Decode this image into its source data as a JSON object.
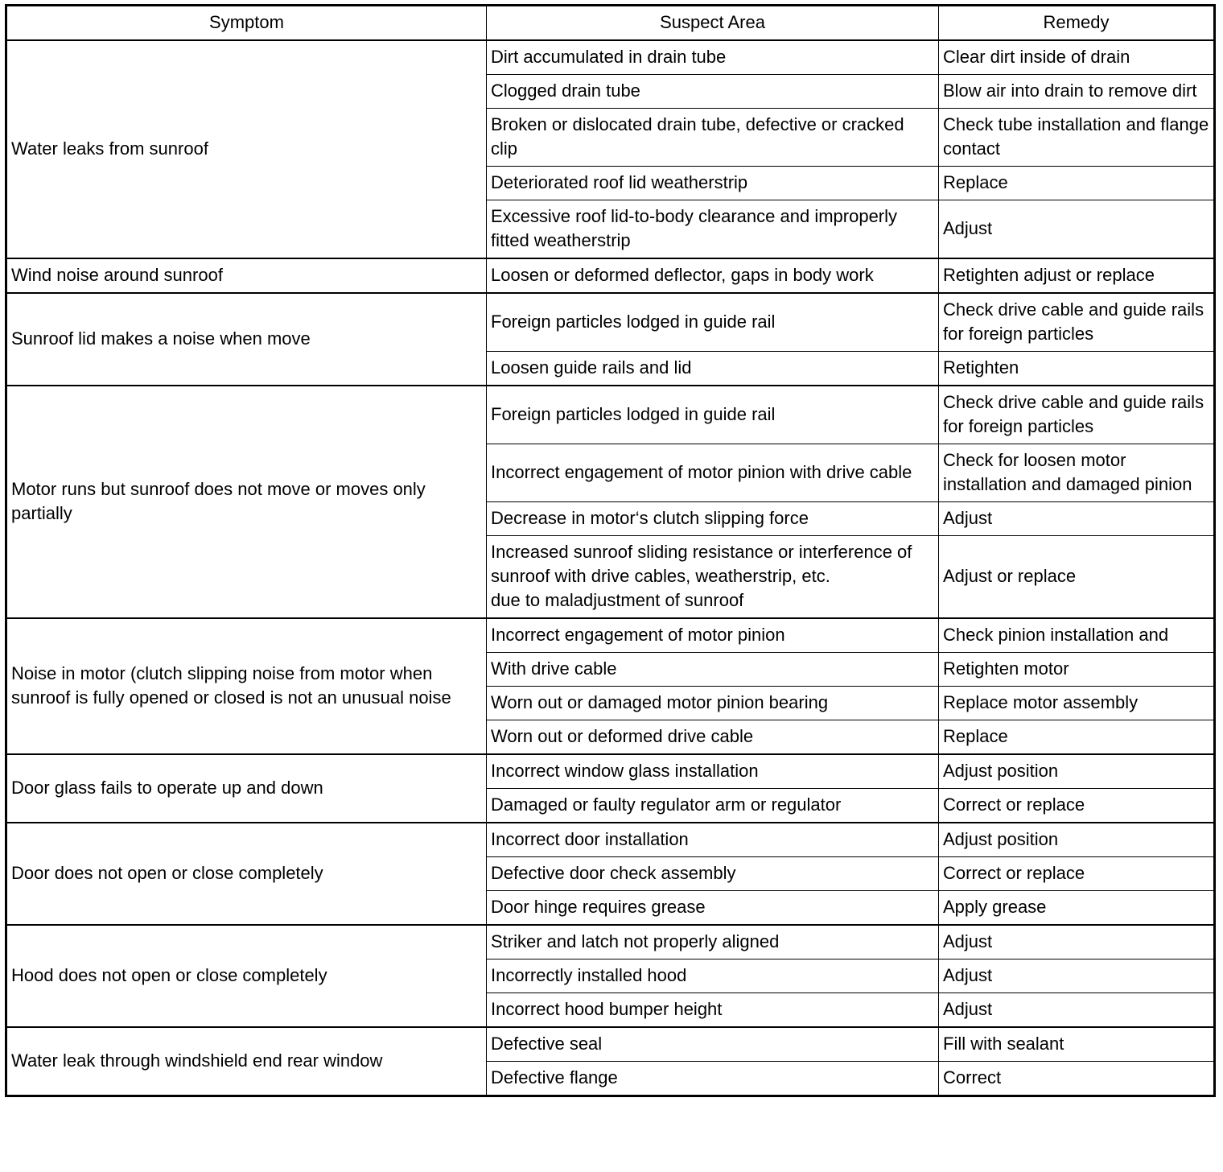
{
  "headers": {
    "symptom": "Symptom",
    "suspect": "Suspect Area",
    "remedy": "Remedy"
  },
  "groups": [
    {
      "symptom": "Water leaks from sunroof",
      "rows": [
        {
          "suspect": "Dirt accumulated in drain tube",
          "remedy": "Clear dirt inside of drain"
        },
        {
          "suspect": "Clogged drain tube",
          "remedy": "Blow air into drain to remove dirt"
        },
        {
          "suspect": "Broken or dislocated drain tube, defective or cracked clip",
          "remedy": "Check tube installation and flange contact"
        },
        {
          "suspect": "Deteriorated roof lid weatherstrip",
          "remedy": "Replace"
        },
        {
          "suspect": "Excessive roof lid-to-body clearance and improperly fitted weatherstrip",
          "remedy": "Adjust"
        }
      ]
    },
    {
      "symptom": "Wind noise around sunroof",
      "rows": [
        {
          "suspect": "Loosen or deformed deflector, gaps in body work",
          "remedy": "Retighten adjust or replace"
        }
      ]
    },
    {
      "symptom": "Sunroof lid makes a noise when move",
      "rows": [
        {
          "suspect": "Foreign particles lodged in guide rail",
          "remedy": "Check drive cable and guide rails for foreign particles"
        },
        {
          "suspect": "Loosen guide rails and lid",
          "remedy": "Retighten"
        }
      ]
    },
    {
      "symptom": "Motor runs but sunroof does not move or moves only partially",
      "rows": [
        {
          "suspect": "Foreign particles lodged in guide rail",
          "remedy": "Check drive cable and guide rails for foreign particles"
        },
        {
          "suspect": "Incorrect engagement of motor pinion with drive cable",
          "remedy": "Check for loosen motor installation and damaged pinion"
        },
        {
          "suspect": "Decrease in motor‘s clutch slipping force",
          "remedy": "Adjust"
        },
        {
          "suspect": "Increased sunroof sliding resistance or interference of sunroof with drive cables, weatherstrip, etc.\ndue to maladjustment of sunroof",
          "remedy": "Adjust or replace"
        }
      ]
    },
    {
      "symptom": "Noise in motor (clutch slipping noise from motor when sunroof is fully opened or closed is not an unusual noise",
      "rows": [
        {
          "suspect": "Incorrect engagement of motor pinion",
          "remedy": "Check pinion installation and"
        },
        {
          "suspect": "With drive cable",
          "remedy": "Retighten motor"
        },
        {
          "suspect": "Worn out or damaged motor pinion bearing",
          "remedy": "Replace motor assembly"
        },
        {
          "suspect": "Worn out or deformed drive cable",
          "remedy": "Replace"
        }
      ]
    },
    {
      "symptom": "Door glass fails to operate up and down",
      "rows": [
        {
          "suspect": "Incorrect window glass installation",
          "remedy": "Adjust position"
        },
        {
          "suspect": "Damaged or faulty regulator arm or regulator",
          "remedy": "Correct or replace"
        }
      ]
    },
    {
      "symptom": "Door does not open or close completely",
      "rows": [
        {
          "suspect": "Incorrect door installation",
          "remedy": "Adjust position"
        },
        {
          "suspect": "Defective door check assembly",
          "remedy": "Correct or replace"
        },
        {
          "suspect": "Door hinge requires grease",
          "remedy": "Apply grease"
        }
      ]
    },
    {
      "symptom": "Hood does not open or close completely",
      "rows": [
        {
          "suspect": "Striker and latch not properly aligned",
          "remedy": "Adjust"
        },
        {
          "suspect": "Incorrectly installed hood",
          "remedy": "Adjust"
        },
        {
          "suspect": "Incorrect hood bumper height",
          "remedy": "Adjust"
        }
      ]
    },
    {
      "symptom": "Water leak through windshield end rear window",
      "rows": [
        {
          "suspect": "Defective seal",
          "remedy": "Fill with sealant"
        },
        {
          "suspect": "Defective flange",
          "remedy": "Correct"
        }
      ]
    }
  ]
}
